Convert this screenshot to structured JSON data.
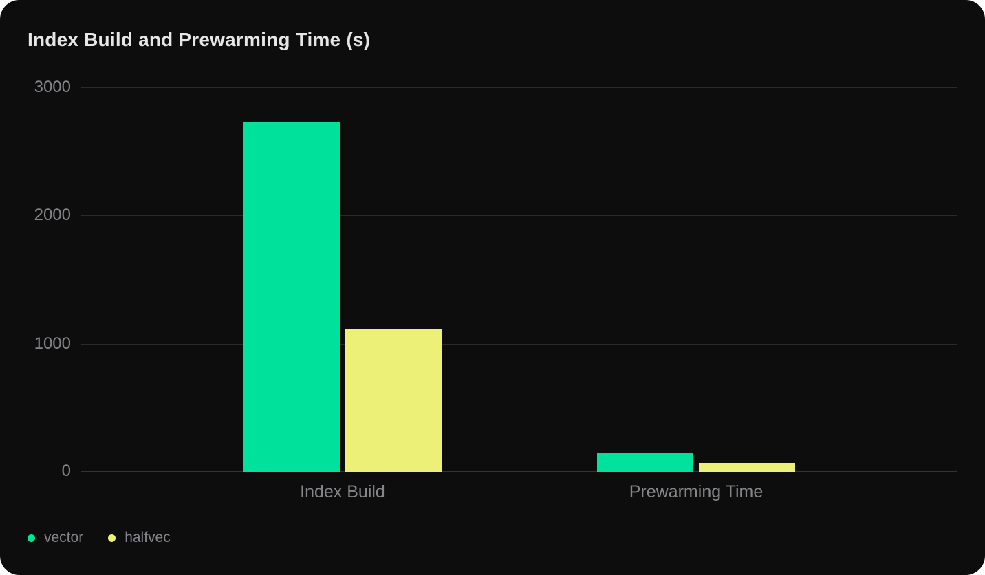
{
  "title": "Index Build and Prewarming Time (s)",
  "colors": {
    "background": "#0D0D0D",
    "grid_line": "#2A2A2B",
    "axis_label": "#85858A",
    "title": "#E6E6E6"
  },
  "chart_data": {
    "type": "bar",
    "title": "Index Build and Prewarming Time (s)",
    "categories": [
      "Index Build",
      "Prewarming Time"
    ],
    "series": [
      {
        "name": "vector",
        "color": "#00E29B",
        "values": [
          2725,
          150
        ]
      },
      {
        "name": "halfvec",
        "color": "#ECF077",
        "values": [
          1110,
          70
        ]
      }
    ],
    "xlabel": "",
    "ylabel": "",
    "ylim": [
      0,
      3000
    ],
    "yticks": [
      3000,
      2000,
      1000,
      0
    ],
    "ytick_labels": [
      "3000",
      "2000",
      "1000",
      "0"
    ],
    "grid": true,
    "legend_position": "bottom-left"
  }
}
